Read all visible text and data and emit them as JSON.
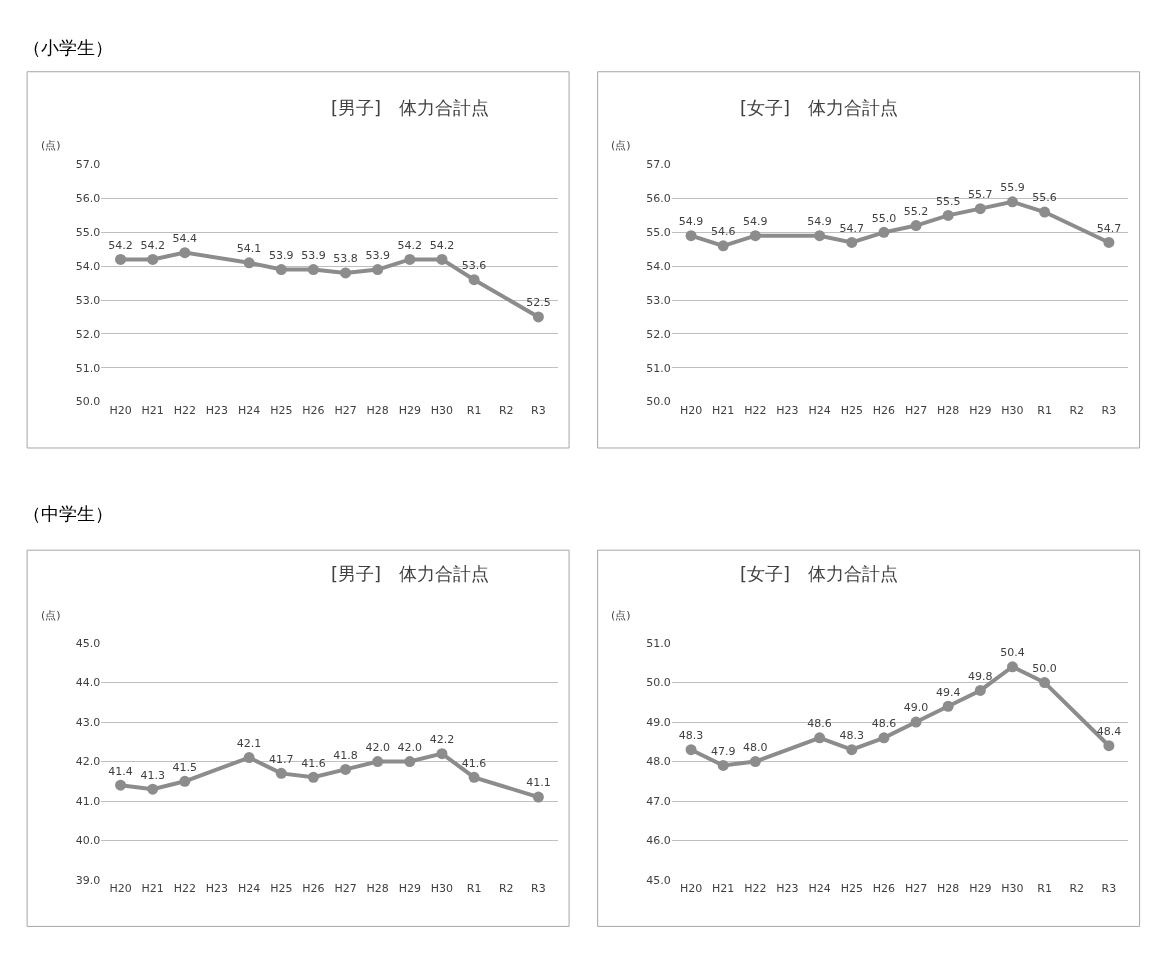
{
  "chart_data": [
    {
      "type": "line",
      "title": "[男子]　体力合計点",
      "ylabel": "(点)",
      "annotations": [
        "（小学生）"
      ],
      "categories": [
        "H20",
        "H21",
        "H22",
        "H23",
        "H24",
        "H25",
        "H26",
        "H27",
        "H28",
        "H29",
        "H30",
        "R1",
        "R2",
        "R3"
      ],
      "series": [
        {
          "color": "#8c8c8c",
          "values": [
            54.2,
            54.2,
            54.4,
            null,
            54.1,
            53.9,
            53.9,
            53.8,
            53.9,
            54.2,
            54.2,
            53.6,
            null,
            52.5
          ],
          "value_labels": [
            "54.2",
            "54.2",
            "54.4",
            null,
            "54.1",
            "53.9",
            "53.9",
            "53.8",
            "53.9",
            "54.2",
            "54.2",
            "53.6",
            null,
            "52.5"
          ]
        }
      ],
      "ylim": [
        50,
        57
      ],
      "yticks": [
        {
          "value": 50,
          "label": "50.0"
        },
        {
          "value": 51,
          "label": "51.0"
        },
        {
          "value": 52,
          "label": "52.0"
        },
        {
          "value": 53,
          "label": "53.0"
        },
        {
          "value": 54,
          "label": "54.0"
        },
        {
          "value": 55,
          "label": "55.0"
        },
        {
          "value": 56,
          "label": "56.0"
        },
        {
          "value": 57,
          "label": "57.0"
        }
      ],
      "grid": "y",
      "marker": "circle"
    },
    {
      "type": "line",
      "title": "[女子]　体力合計点",
      "ylabel": "(点)",
      "categories": [
        "H20",
        "H21",
        "H22",
        "H23",
        "H24",
        "H25",
        "H26",
        "H27",
        "H28",
        "H29",
        "H30",
        "R1",
        "R2",
        "R3"
      ],
      "series": [
        {
          "color": "#8c8c8c",
          "values": [
            54.9,
            54.6,
            54.9,
            null,
            54.9,
            54.7,
            55.0,
            55.2,
            55.5,
            55.7,
            55.9,
            55.6,
            null,
            54.7
          ],
          "value_labels": [
            "54.9",
            "54.6",
            "54.9",
            null,
            "54.9",
            "54.7",
            "55.0",
            "55.2",
            "55.5",
            "55.7",
            "55.9",
            "55.6",
            null,
            "54.7"
          ]
        }
      ],
      "ylim": [
        50,
        57
      ],
      "yticks": [
        {
          "value": 50,
          "label": "50.0"
        },
        {
          "value": 51,
          "label": "51.0"
        },
        {
          "value": 52,
          "label": "52.0"
        },
        {
          "value": 53,
          "label": "53.0"
        },
        {
          "value": 54,
          "label": "54.0"
        },
        {
          "value": 55,
          "label": "55.0"
        },
        {
          "value": 56,
          "label": "56.0"
        },
        {
          "value": 57,
          "label": "57.0"
        }
      ],
      "grid": "y",
      "marker": "circle"
    },
    {
      "type": "line",
      "title": "[男子]　体力合計点",
      "ylabel": "(点)",
      "annotations": [
        "（中学生）"
      ],
      "categories": [
        "H20",
        "H21",
        "H22",
        "H23",
        "H24",
        "H25",
        "H26",
        "H27",
        "H28",
        "H29",
        "H30",
        "R1",
        "R2",
        "R3"
      ],
      "series": [
        {
          "color": "#8c8c8c",
          "values": [
            41.4,
            41.3,
            41.5,
            null,
            42.1,
            41.7,
            41.6,
            41.8,
            42.0,
            42.0,
            42.2,
            41.6,
            null,
            41.1
          ],
          "value_labels": [
            "41.4",
            "41.3",
            "41.5",
            null,
            "42.1",
            "41.7",
            "41.6",
            "41.8",
            "42.0",
            "42.0",
            "42.2",
            "41.6",
            null,
            "41.1"
          ]
        }
      ],
      "ylim": [
        39,
        45
      ],
      "yticks": [
        {
          "value": 39,
          "label": "39.0"
        },
        {
          "value": 40,
          "label": "40.0"
        },
        {
          "value": 41,
          "label": "41.0"
        },
        {
          "value": 42,
          "label": "42.0"
        },
        {
          "value": 43,
          "label": "43.0"
        },
        {
          "value": 44,
          "label": "44.0"
        },
        {
          "value": 45,
          "label": "45.0"
        }
      ],
      "grid": "y",
      "marker": "circle"
    },
    {
      "type": "line",
      "title": "[女子]　体力合計点",
      "ylabel": "(点)",
      "categories": [
        "H20",
        "H21",
        "H22",
        "H23",
        "H24",
        "H25",
        "H26",
        "H27",
        "H28",
        "H29",
        "H30",
        "R1",
        "R2",
        "R3"
      ],
      "series": [
        {
          "color": "#8c8c8c",
          "values": [
            48.3,
            47.9,
            48.0,
            null,
            48.6,
            48.3,
            48.6,
            49.0,
            49.4,
            49.8,
            50.4,
            50.0,
            null,
            48.4
          ],
          "value_labels": [
            "48.3",
            "47.9",
            "48.0",
            null,
            "48.6",
            "48.3",
            "48.6",
            "49.0",
            "49.4",
            "49.8",
            "50.4",
            "50.0",
            null,
            "48.4"
          ]
        }
      ],
      "ylim": [
        45,
        51
      ],
      "yticks": [
        {
          "value": 45,
          "label": "45.0"
        },
        {
          "value": 46,
          "label": "46.0"
        },
        {
          "value": 47,
          "label": "47.0"
        },
        {
          "value": 48,
          "label": "48.0"
        },
        {
          "value": 49,
          "label": "49.0"
        },
        {
          "value": 50,
          "label": "50.0"
        },
        {
          "value": 51,
          "label": "51.0"
        }
      ],
      "grid": "y",
      "marker": "circle"
    }
  ]
}
